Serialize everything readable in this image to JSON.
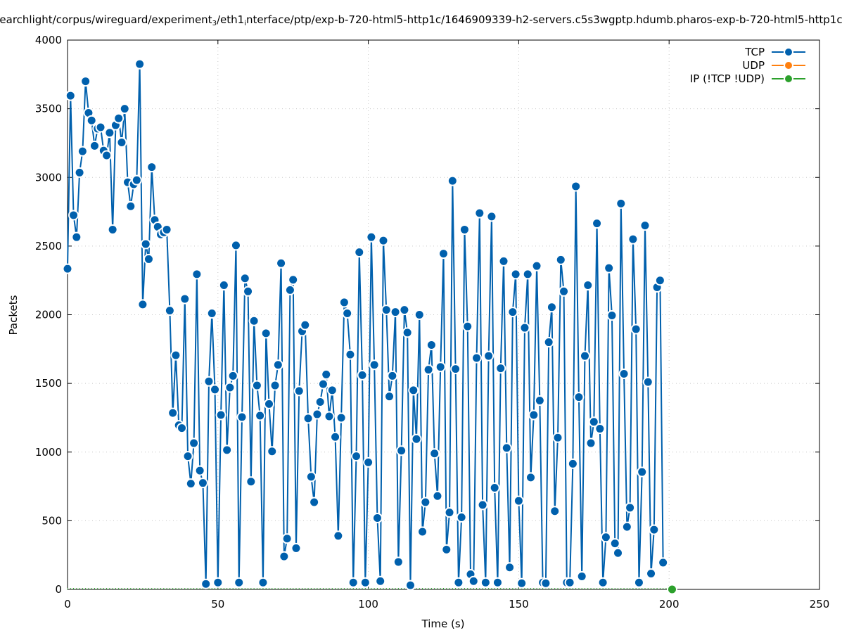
{
  "chart_data": {
    "type": "line",
    "title_parts": [
      "earchlight/corpus/wireguard/experiment",
      "3",
      "/eth1",
      "i",
      "nterface/ptp/exp-b-720-html5-http1c/1646909339-h2-servers.c5s3wgptp.hdumb.pharos-exp-b-720-html5-http1c"
    ],
    "xlabel": "Time (s)",
    "ylabel": "Packets",
    "xlim": [
      0,
      250
    ],
    "ylim": [
      0,
      4000
    ],
    "xticks": [
      0,
      50,
      100,
      150,
      200,
      250
    ],
    "yticks": [
      0,
      500,
      1000,
      1500,
      2000,
      2500,
      3000,
      3500,
      4000
    ],
    "grid": true,
    "legend_position": "top-right",
    "series": [
      {
        "name": "TCP",
        "color": "#0060ad",
        "x_start": 0,
        "x_step": 1,
        "values": [
          2335,
          3595,
          2725,
          2565,
          3035,
          3190,
          3700,
          3470,
          3415,
          3230,
          3355,
          3365,
          3195,
          3160,
          3325,
          2620,
          3380,
          3430,
          3255,
          3500,
          2965,
          2790,
          2950,
          2980,
          3825,
          2075,
          2515,
          2405,
          3075,
          2690,
          2640,
          2585,
          2600,
          2620,
          2030,
          1285,
          1705,
          1195,
          1175,
          2115,
          970,
          770,
          1065,
          2295,
          865,
          775,
          40,
          1515,
          2010,
          1455,
          50,
          1270,
          2215,
          1015,
          1470,
          1555,
          2505,
          50,
          1255,
          2265,
          2170,
          785,
          1955,
          1485,
          1265,
          50,
          1865,
          1350,
          1005,
          1485,
          1635,
          2375,
          240,
          370,
          2180,
          2255,
          300,
          1445,
          1880,
          1925,
          1245,
          820,
          635,
          1275,
          1365,
          1495,
          1565,
          1260,
          1450,
          1110,
          390,
          1250,
          2090,
          2010,
          1710,
          50,
          970,
          2455,
          1560,
          50,
          925,
          2565,
          1635,
          520,
          60,
          2540,
          2035,
          1405,
          1555,
          2020,
          200,
          1010,
          2035,
          1870,
          30,
          1450,
          1095,
          2000,
          420,
          635,
          1600,
          1780,
          990,
          680,
          1620,
          2445,
          290,
          560,
          2975,
          1605,
          50,
          525,
          2620,
          1915,
          110,
          60,
          1685,
          2740,
          615,
          50,
          1700,
          2715,
          740,
          50,
          1610,
          2390,
          1030,
          160,
          2020,
          2295,
          645,
          45,
          1905,
          2295,
          815,
          1270,
          2355,
          1375,
          50,
          45,
          1800,
          2055,
          570,
          1105,
          2400,
          2170,
          50,
          50,
          915,
          2935,
          1400,
          95,
          1700,
          2215,
          1065,
          1220,
          2665,
          1170,
          50,
          380,
          2340,
          1995,
          335,
          265,
          2810,
          1570,
          455,
          595,
          2550,
          1895,
          50,
          855,
          2650,
          1510,
          115,
          435,
          2200,
          2250,
          195
        ]
      },
      {
        "name": "UDP",
        "color": "#ff7f0e",
        "x_start": 0,
        "x_step": 1,
        "values": []
      },
      {
        "name": "IP (!TCP  !UDP)",
        "color": "#2ca02c",
        "x_start": 201,
        "x_step": 1,
        "values": [
          0
        ]
      }
    ]
  }
}
